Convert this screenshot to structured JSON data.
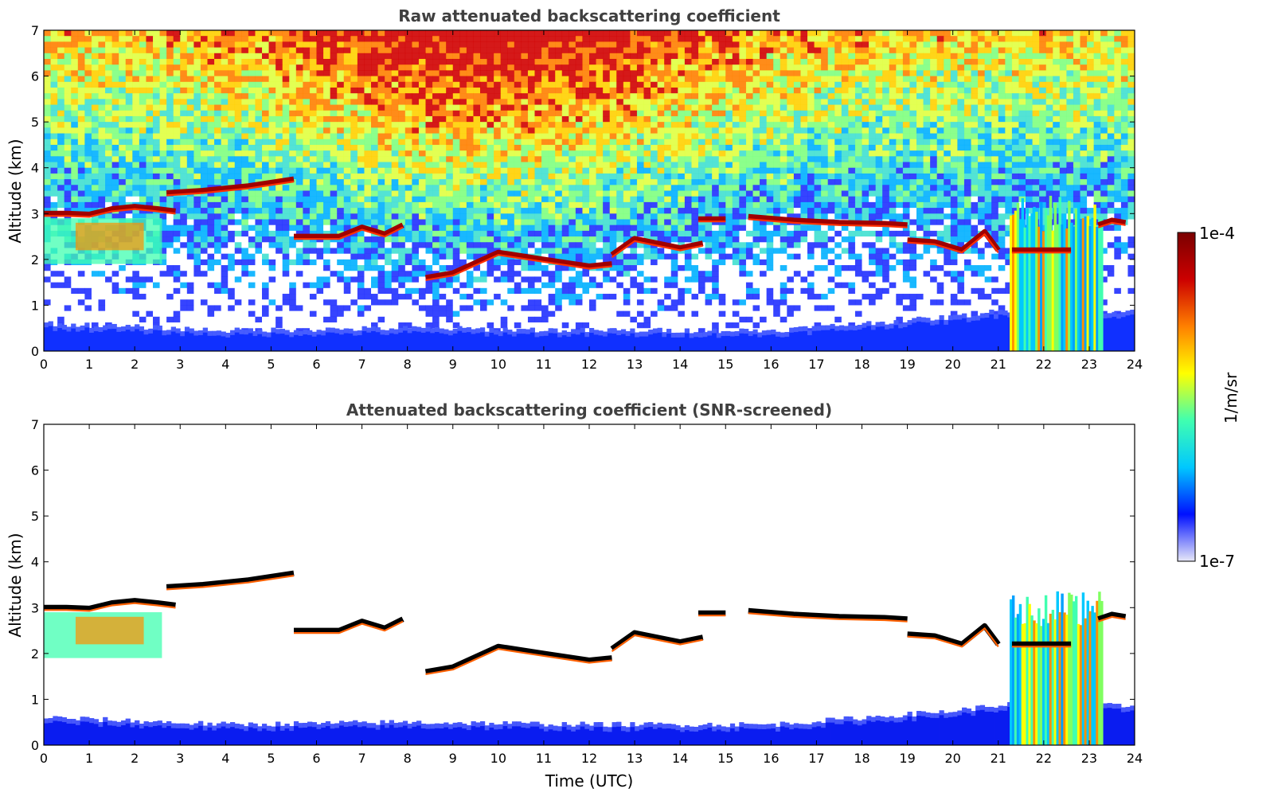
{
  "chart_data": [
    {
      "type": "heatmap",
      "title": "Raw attenuated backscattering coefficient",
      "xlabel": "",
      "ylabel": "Altitude (km)",
      "xlim": [
        0,
        24
      ],
      "ylim": [
        0,
        7
      ],
      "x_ticks": [
        "0",
        "1",
        "2",
        "3",
        "4",
        "5",
        "6",
        "7",
        "8",
        "9",
        "10",
        "11",
        "12",
        "13",
        "14",
        "15",
        "16",
        "17",
        "18",
        "19",
        "20",
        "21",
        "22",
        "23",
        "24"
      ],
      "y_ticks": [
        "0",
        "1",
        "2",
        "3",
        "4",
        "5",
        "6",
        "7"
      ],
      "screened": false,
      "cloud_layers": [
        {
          "x": [
            0.0,
            0.5,
            1.0,
            1.5,
            2.0,
            2.5,
            2.9
          ],
          "y": [
            3.0,
            3.0,
            2.98,
            3.1,
            3.15,
            3.1,
            3.05
          ]
        },
        {
          "x": [
            2.7,
            3.5,
            4.5,
            5.5
          ],
          "y": [
            3.45,
            3.5,
            3.6,
            3.75
          ]
        },
        {
          "x": [
            5.5,
            6.5,
            7.0,
            7.5,
            7.9
          ],
          "y": [
            2.5,
            2.5,
            2.7,
            2.55,
            2.75
          ]
        },
        {
          "x": [
            8.4,
            9.0,
            10.0,
            11.0,
            12.0,
            12.5
          ],
          "y": [
            1.6,
            1.7,
            2.15,
            2.0,
            1.85,
            1.9
          ]
        },
        {
          "x": [
            12.5,
            13.0,
            14.0,
            14.5
          ],
          "y": [
            2.1,
            2.45,
            2.25,
            2.35
          ]
        },
        {
          "x": [
            14.4,
            15.0
          ],
          "y": [
            2.88,
            2.88
          ]
        },
        {
          "x": [
            15.5,
            16.5,
            17.5,
            18.5,
            19.0
          ],
          "y": [
            2.93,
            2.85,
            2.8,
            2.78,
            2.75
          ]
        },
        {
          "x": [
            19.0,
            19.6,
            20.2,
            20.7,
            21.0
          ],
          "y": [
            2.42,
            2.38,
            2.2,
            2.6,
            2.2
          ]
        },
        {
          "x": [
            21.3,
            22.0,
            22.6
          ],
          "y": [
            2.2,
            2.2,
            2.2
          ]
        },
        {
          "x": [
            23.2,
            23.5,
            23.8
          ],
          "y": [
            2.75,
            2.85,
            2.8
          ]
        }
      ],
      "aerosol_plume": {
        "x_start": 0.0,
        "x_end": 2.6,
        "y_bottom": 1.9,
        "y_top": 2.9
      },
      "precipitation_shafts": [
        {
          "x_start": 21.25,
          "x_end": 23.3,
          "y_top": 3.4
        }
      ],
      "boundary_layer_top": [
        {
          "x": 0,
          "y": 0.6
        },
        {
          "x": 4,
          "y": 0.45
        },
        {
          "x": 8,
          "y": 0.5
        },
        {
          "x": 12,
          "y": 0.45
        },
        {
          "x": 16,
          "y": 0.45
        },
        {
          "x": 20,
          "y": 0.75
        },
        {
          "x": 21.2,
          "y": 0.9
        },
        {
          "x": 24,
          "y": 0.85
        }
      ]
    },
    {
      "type": "heatmap",
      "title": "Attenuated backscattering coefficient (SNR-screened)",
      "xlabel": "Time (UTC)",
      "ylabel": "Altitude (km)",
      "xlim": [
        0,
        24
      ],
      "ylim": [
        0,
        7
      ],
      "x_ticks": [
        "0",
        "1",
        "2",
        "3",
        "4",
        "5",
        "6",
        "7",
        "8",
        "9",
        "10",
        "11",
        "12",
        "13",
        "14",
        "15",
        "16",
        "17",
        "18",
        "19",
        "20",
        "21",
        "22",
        "23",
        "24"
      ],
      "y_ticks": [
        "0",
        "1",
        "2",
        "3",
        "4",
        "5",
        "6",
        "7"
      ],
      "screened": true,
      "cloud_layers": [
        {
          "x": [
            0.0,
            0.5,
            1.0,
            1.5,
            2.0,
            2.5,
            2.9
          ],
          "y": [
            3.0,
            3.0,
            2.98,
            3.1,
            3.15,
            3.1,
            3.05
          ]
        },
        {
          "x": [
            2.7,
            3.5,
            4.5,
            5.5
          ],
          "y": [
            3.45,
            3.5,
            3.6,
            3.75
          ]
        },
        {
          "x": [
            5.5,
            6.5,
            7.0,
            7.5,
            7.9
          ],
          "y": [
            2.5,
            2.5,
            2.7,
            2.55,
            2.75
          ]
        },
        {
          "x": [
            8.4,
            9.0,
            10.0,
            11.0,
            12.0,
            12.5
          ],
          "y": [
            1.6,
            1.7,
            2.15,
            2.0,
            1.85,
            1.9
          ]
        },
        {
          "x": [
            12.5,
            13.0,
            14.0,
            14.5
          ],
          "y": [
            2.1,
            2.45,
            2.25,
            2.35
          ]
        },
        {
          "x": [
            14.4,
            15.0
          ],
          "y": [
            2.88,
            2.88
          ]
        },
        {
          "x": [
            15.5,
            16.5,
            17.5,
            18.5,
            19.0
          ],
          "y": [
            2.93,
            2.85,
            2.8,
            2.78,
            2.75
          ]
        },
        {
          "x": [
            19.0,
            19.6,
            20.2,
            20.7,
            21.0
          ],
          "y": [
            2.42,
            2.38,
            2.2,
            2.6,
            2.2
          ]
        },
        {
          "x": [
            21.3,
            22.0,
            22.6
          ],
          "y": [
            2.2,
            2.2,
            2.2
          ]
        },
        {
          "x": [
            23.2,
            23.5,
            23.8
          ],
          "y": [
            2.75,
            2.85,
            2.8
          ]
        }
      ],
      "aerosol_plume": {
        "x_start": 0.0,
        "x_end": 2.6,
        "y_bottom": 1.9,
        "y_top": 2.9
      },
      "precipitation_shafts": [
        {
          "x_start": 21.25,
          "x_end": 23.3,
          "y_top": 3.4
        }
      ],
      "boundary_layer_top": [
        {
          "x": 0,
          "y": 0.6
        },
        {
          "x": 4,
          "y": 0.45
        },
        {
          "x": 8,
          "y": 0.5
        },
        {
          "x": 12,
          "y": 0.45
        },
        {
          "x": 16,
          "y": 0.45
        },
        {
          "x": 20,
          "y": 0.75
        },
        {
          "x": 21.2,
          "y": 0.9
        },
        {
          "x": 24,
          "y": 0.85
        }
      ]
    }
  ],
  "colorbar": {
    "label": "1/m/sr",
    "max_label": "1e-4",
    "min_label": "1e-7",
    "scale": "log",
    "colormap": [
      "#e8e8f8",
      "#0010ff",
      "#00c8ff",
      "#40ffb0",
      "#ffff00",
      "#ff8000",
      "#cc0000",
      "#7a0000"
    ]
  }
}
